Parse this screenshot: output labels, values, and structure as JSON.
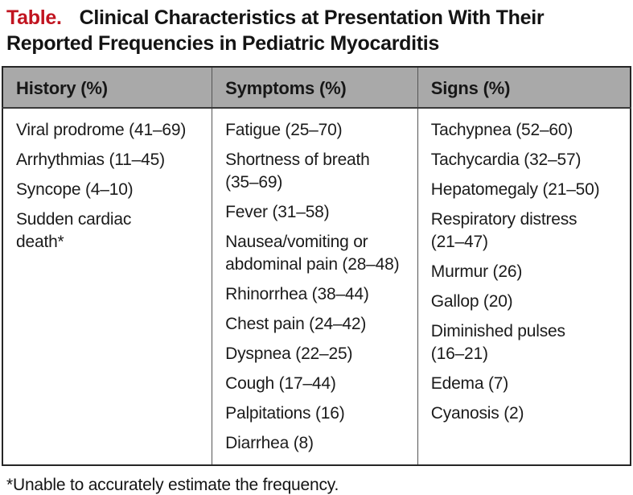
{
  "caption": {
    "label": "Table.",
    "title": "Clinical Characteristics at Presentation With Their\nReported Frequencies in Pediatric Myocarditis"
  },
  "table": {
    "columns": [
      {
        "header": "History (%)",
        "items": [
          "Viral prodrome (41–69)",
          "Arrhythmias (11–45)",
          "Syncope (4–10)",
          "Sudden cardiac\ndeath*"
        ]
      },
      {
        "header": "Symptoms (%)",
        "items": [
          "Fatigue (25–70)",
          "Shortness of breath\n(35–69)",
          "Fever (31–58)",
          "Nausea/vomiting or\nabdominal pain (28–48)",
          "Rhinorrhea (38–44)",
          "Chest pain (24–42)",
          "Dyspnea (22–25)",
          "Cough (17–44)",
          "Palpitations (16)",
          "Diarrhea (8)"
        ]
      },
      {
        "header": "Signs (%)",
        "items": [
          "Tachypnea (52–60)",
          "Tachycardia (32–57)",
          "Hepatomegaly (21–50)",
          "Respiratory distress\n(21–47)",
          "Murmur (26)",
          "Gallop (20)",
          "Diminished pulses\n(16–21)",
          "Edema (7)",
          "Cyanosis (2)"
        ]
      }
    ]
  },
  "footnote": "*Unable to accurately estimate the frequency.",
  "colors": {
    "accent_red": "#c11420",
    "header_gray": "#a9a9a9",
    "border_dark": "#262626"
  }
}
